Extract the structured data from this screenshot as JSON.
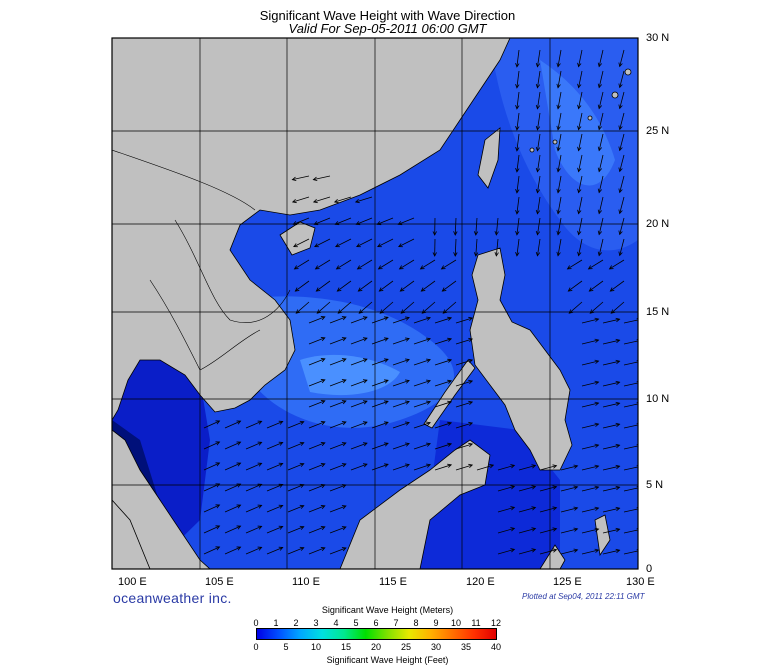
{
  "title": "Significant Wave Height with Wave Direction",
  "subtitle": "Valid For Sep-05-2011 06:00 GMT",
  "lat_labels": [
    "30 N",
    "25 N",
    "20 N",
    "15 N",
    "10 N",
    "5 N",
    "0"
  ],
  "lon_labels": [
    "100 E",
    "105 E",
    "110 E",
    "115 E",
    "120 E",
    "125 E",
    "130 E"
  ],
  "brand": "oceanweather inc.",
  "plotted": "Plotted at Sep04, 2011 22:11 GMT",
  "colorbar": {
    "title_top": "Significant Wave Height (Meters)",
    "title_bottom": "Significant Wave Height (Feet)",
    "meters": [
      "0",
      "1",
      "2",
      "3",
      "4",
      "5",
      "6",
      "7",
      "8",
      "9",
      "10",
      "11",
      "12"
    ],
    "feet": [
      "0",
      "5",
      "10",
      "15",
      "20",
      "25",
      "30",
      "35",
      "40"
    ],
    "colors": [
      "#0000e6",
      "#0050ff",
      "#00a8ff",
      "#00e0e0",
      "#00e890",
      "#00e000",
      "#80e000",
      "#e8e800",
      "#ffb000",
      "#ff7000",
      "#ff3000",
      "#e00000"
    ]
  },
  "colors": {
    "land": "#c0c0c0",
    "water_deep": "#0a1fd0",
    "water_mid": "#1f5cf0",
    "water_light": "#3a8cff",
    "shallow": "#0010a0"
  },
  "map": {
    "lon_range": [
      100,
      130
    ],
    "lat_range": [
      0,
      30
    ],
    "grid": true,
    "wave_direction": "arrows mostly toward the east and northeast in the south, toward the south and southwest in the north-east"
  }
}
